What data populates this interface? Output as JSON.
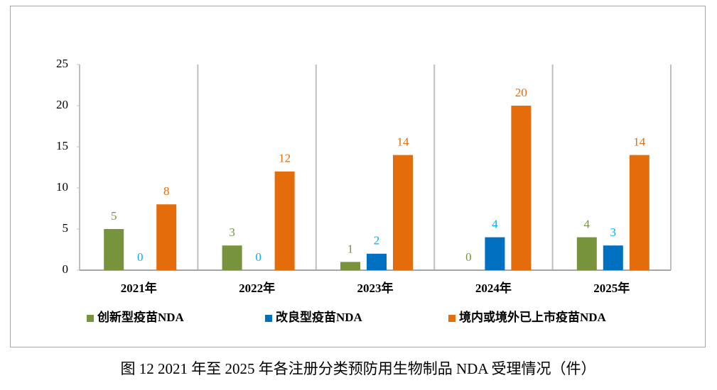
{
  "chart_data": {
    "type": "bar",
    "caption": "图 12   2021 年至 2025 年各注册分类预防用生物制品 NDA 受理情况（件）",
    "categories": [
      "2021年",
      "2022年",
      "2023年",
      "2024年",
      "2025年"
    ],
    "series": [
      {
        "name": "创新型疫苗NDA",
        "color": "#77933c",
        "label_color": "#77933c",
        "values": [
          5,
          3,
          1,
          0,
          4
        ]
      },
      {
        "name": "改良型疫苗NDA",
        "color": "#0070c0",
        "label_color": "#00b0f0",
        "values": [
          0,
          0,
          2,
          4,
          3
        ]
      },
      {
        "name": "境内或境外已上市疫苗NDA",
        "color": "#e46c0a",
        "label_color": "#e46c0a",
        "values": [
          8,
          12,
          14,
          20,
          14
        ]
      }
    ],
    "ylim": [
      0,
      25
    ],
    "yticks": [
      0,
      5,
      10,
      15,
      20,
      25
    ],
    "legend": "bottom"
  }
}
